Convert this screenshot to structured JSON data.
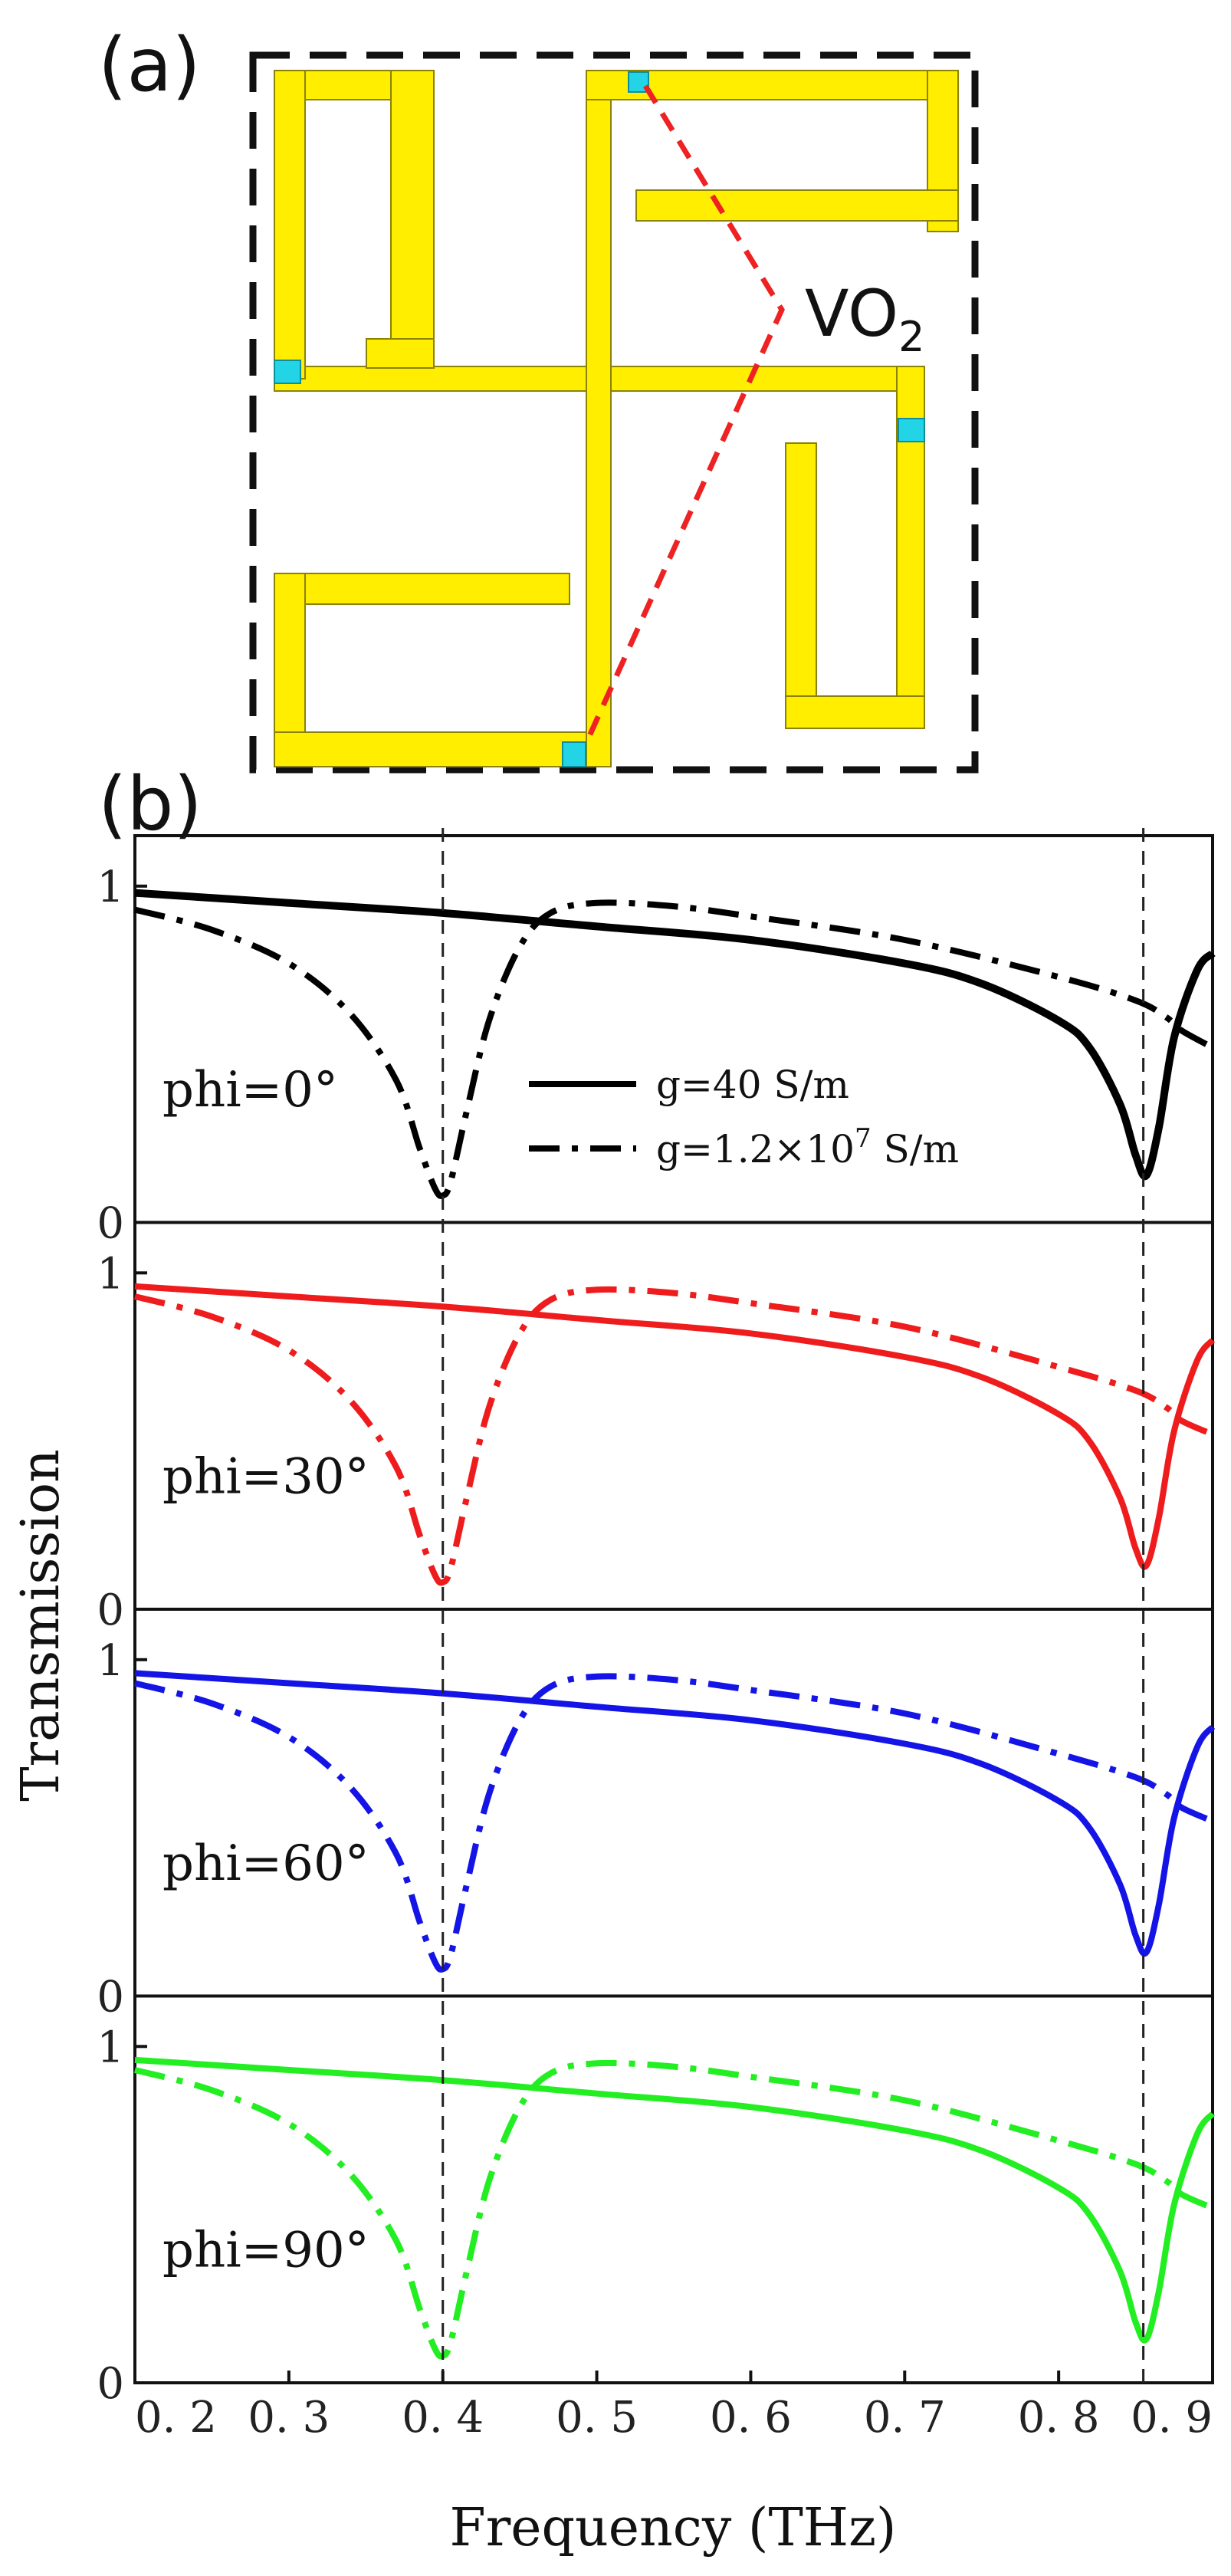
{
  "panel_a": {
    "label": "(a)",
    "vo2_label": "VO",
    "vo2_subscript": "2",
    "metal_color": "#ffee00",
    "metal_edge": "#8a8200",
    "vo2_color": "#22d4e6",
    "frame_color": "#111111",
    "pointer_color": "#ee2222"
  },
  "panel_b": {
    "label": "(b)"
  },
  "chart_data": {
    "type": "line",
    "title": "",
    "xlabel": "Frequency (THz)",
    "ylabel": "Transmission",
    "xlim": [
      0.2,
      0.9
    ],
    "ylim": [
      0,
      1.15
    ],
    "x_tick_labels": [
      "0. 2",
      "0. 3",
      "0. 4",
      "0. 5",
      "0. 6",
      "0. 7",
      "0. 8",
      "0. 9"
    ],
    "x_ticks": [
      0.2,
      0.3,
      0.4,
      0.5,
      0.6,
      0.7,
      0.8,
      0.9
    ],
    "y_tick_labels": [
      "0",
      "1"
    ],
    "y_ticks": [
      0,
      1
    ],
    "reference_lines_x": [
      0.4,
      0.855
    ],
    "legend": {
      "solid": "g=40 S/m",
      "dashdot_prefix": "g=1.2×10",
      "dashdot_exponent": "7",
      "dashdot_suffix": " S/m"
    },
    "panels": [
      {
        "phi_label": "phi=0°",
        "color": "#000000",
        "series": [
          {
            "name": "g=40 S/m",
            "x": [
              0.2,
              0.3,
              0.4,
              0.5,
              0.6,
              0.7,
              0.75,
              0.8,
              0.82,
              0.84,
              0.85,
              0.857,
              0.865,
              0.875,
              0.89,
              0.9
            ],
            "values": [
              0.98,
              0.95,
              0.92,
              0.88,
              0.84,
              0.77,
              0.71,
              0.6,
              0.52,
              0.35,
              0.2,
              0.14,
              0.28,
              0.55,
              0.75,
              0.8
            ]
          },
          {
            "name": "g=1.2×10^7 S/m",
            "x": [
              0.2,
              0.25,
              0.3,
              0.34,
              0.37,
              0.385,
              0.395,
              0.4,
              0.405,
              0.415,
              0.43,
              0.45,
              0.47,
              0.5,
              0.55,
              0.6,
              0.7,
              0.8,
              0.85,
              0.87,
              0.88,
              0.9
            ],
            "values": [
              0.93,
              0.87,
              0.77,
              0.62,
              0.42,
              0.22,
              0.1,
              0.08,
              0.12,
              0.32,
              0.6,
              0.82,
              0.92,
              0.95,
              0.94,
              0.91,
              0.84,
              0.73,
              0.66,
              0.61,
              0.57,
              0.52
            ]
          }
        ]
      },
      {
        "phi_label": "phi=30°",
        "color": "#ee1c1c",
        "series": [
          {
            "name": "g=40 S/m",
            "x": [
              0.2,
              0.3,
              0.4,
              0.5,
              0.6,
              0.7,
              0.75,
              0.8,
              0.82,
              0.84,
              0.85,
              0.857,
              0.865,
              0.875,
              0.89,
              0.9
            ],
            "values": [
              0.96,
              0.93,
              0.9,
              0.86,
              0.82,
              0.75,
              0.69,
              0.58,
              0.5,
              0.33,
              0.18,
              0.13,
              0.27,
              0.53,
              0.74,
              0.8
            ]
          },
          {
            "name": "g=1.2×10^7 S/m",
            "x": [
              0.2,
              0.25,
              0.3,
              0.34,
              0.37,
              0.385,
              0.395,
              0.4,
              0.405,
              0.415,
              0.43,
              0.45,
              0.47,
              0.5,
              0.55,
              0.6,
              0.7,
              0.8,
              0.85,
              0.87,
              0.88,
              0.9
            ],
            "values": [
              0.93,
              0.87,
              0.77,
              0.62,
              0.42,
              0.22,
              0.1,
              0.08,
              0.12,
              0.32,
              0.6,
              0.82,
              0.92,
              0.95,
              0.94,
              0.91,
              0.84,
              0.72,
              0.65,
              0.6,
              0.56,
              0.52
            ]
          }
        ]
      },
      {
        "phi_label": "phi=60°",
        "color": "#1414e6",
        "series": [
          {
            "name": "g=40 S/m",
            "x": [
              0.2,
              0.3,
              0.4,
              0.5,
              0.6,
              0.7,
              0.75,
              0.8,
              0.82,
              0.84,
              0.85,
              0.857,
              0.865,
              0.875,
              0.89,
              0.9
            ],
            "values": [
              0.96,
              0.93,
              0.9,
              0.86,
              0.82,
              0.75,
              0.69,
              0.58,
              0.5,
              0.33,
              0.18,
              0.13,
              0.27,
              0.53,
              0.74,
              0.8
            ]
          },
          {
            "name": "g=1.2×10^7 S/m",
            "x": [
              0.2,
              0.25,
              0.3,
              0.34,
              0.37,
              0.385,
              0.395,
              0.4,
              0.405,
              0.415,
              0.43,
              0.45,
              0.47,
              0.5,
              0.55,
              0.6,
              0.7,
              0.8,
              0.85,
              0.87,
              0.88,
              0.9
            ],
            "values": [
              0.93,
              0.87,
              0.77,
              0.62,
              0.42,
              0.22,
              0.1,
              0.08,
              0.12,
              0.32,
              0.6,
              0.82,
              0.92,
              0.95,
              0.94,
              0.91,
              0.84,
              0.72,
              0.65,
              0.6,
              0.56,
              0.52
            ]
          }
        ]
      },
      {
        "phi_label": "phi=90°",
        "color": "#22ee22",
        "series": [
          {
            "name": "g=40 S/m",
            "x": [
              0.2,
              0.3,
              0.4,
              0.5,
              0.6,
              0.7,
              0.75,
              0.8,
              0.82,
              0.84,
              0.85,
              0.857,
              0.865,
              0.875,
              0.89,
              0.9
            ],
            "values": [
              0.96,
              0.93,
              0.9,
              0.86,
              0.82,
              0.75,
              0.69,
              0.58,
              0.5,
              0.33,
              0.18,
              0.13,
              0.27,
              0.53,
              0.74,
              0.8
            ]
          },
          {
            "name": "g=1.2×10^7 S/m",
            "x": [
              0.2,
              0.25,
              0.3,
              0.34,
              0.37,
              0.385,
              0.395,
              0.4,
              0.405,
              0.415,
              0.43,
              0.45,
              0.47,
              0.5,
              0.55,
              0.6,
              0.7,
              0.8,
              0.85,
              0.87,
              0.88,
              0.9
            ],
            "values": [
              0.93,
              0.87,
              0.77,
              0.62,
              0.42,
              0.22,
              0.1,
              0.08,
              0.12,
              0.32,
              0.6,
              0.82,
              0.92,
              0.95,
              0.94,
              0.91,
              0.84,
              0.72,
              0.65,
              0.6,
              0.56,
              0.52
            ]
          }
        ]
      }
    ]
  }
}
